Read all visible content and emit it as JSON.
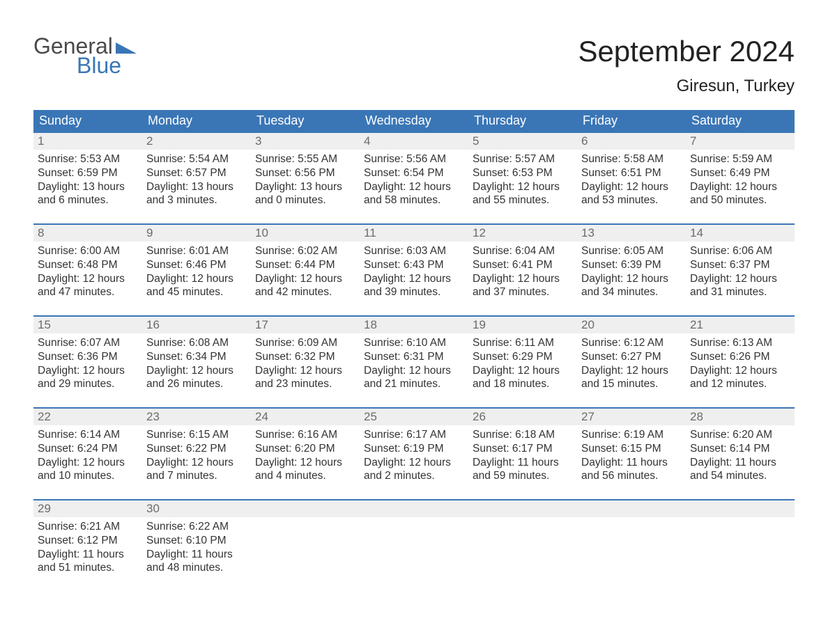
{
  "brand": {
    "line1": "General",
    "line2": "Blue"
  },
  "title": "September 2024",
  "location": "Giresun, Turkey",
  "colors": {
    "header_bg": "#3a76b6",
    "header_text": "#ffffff",
    "daynum_bg": "#efefef",
    "daynum_text": "#6b6b6b",
    "border_top": "#3a76b6",
    "body_text": "#333333",
    "logo_gray": "#4a4a4a",
    "logo_blue": "#3a76b6",
    "page_bg": "#ffffff"
  },
  "weekdays": [
    "Sunday",
    "Monday",
    "Tuesday",
    "Wednesday",
    "Thursday",
    "Friday",
    "Saturday"
  ],
  "weeks": [
    [
      {
        "n": "1",
        "sunrise": "Sunrise: 5:53 AM",
        "sunset": "Sunset: 6:59 PM",
        "d1": "Daylight: 13 hours",
        "d2": "and 6 minutes."
      },
      {
        "n": "2",
        "sunrise": "Sunrise: 5:54 AM",
        "sunset": "Sunset: 6:57 PM",
        "d1": "Daylight: 13 hours",
        "d2": "and 3 minutes."
      },
      {
        "n": "3",
        "sunrise": "Sunrise: 5:55 AM",
        "sunset": "Sunset: 6:56 PM",
        "d1": "Daylight: 13 hours",
        "d2": "and 0 minutes."
      },
      {
        "n": "4",
        "sunrise": "Sunrise: 5:56 AM",
        "sunset": "Sunset: 6:54 PM",
        "d1": "Daylight: 12 hours",
        "d2": "and 58 minutes."
      },
      {
        "n": "5",
        "sunrise": "Sunrise: 5:57 AM",
        "sunset": "Sunset: 6:53 PM",
        "d1": "Daylight: 12 hours",
        "d2": "and 55 minutes."
      },
      {
        "n": "6",
        "sunrise": "Sunrise: 5:58 AM",
        "sunset": "Sunset: 6:51 PM",
        "d1": "Daylight: 12 hours",
        "d2": "and 53 minutes."
      },
      {
        "n": "7",
        "sunrise": "Sunrise: 5:59 AM",
        "sunset": "Sunset: 6:49 PM",
        "d1": "Daylight: 12 hours",
        "d2": "and 50 minutes."
      }
    ],
    [
      {
        "n": "8",
        "sunrise": "Sunrise: 6:00 AM",
        "sunset": "Sunset: 6:48 PM",
        "d1": "Daylight: 12 hours",
        "d2": "and 47 minutes."
      },
      {
        "n": "9",
        "sunrise": "Sunrise: 6:01 AM",
        "sunset": "Sunset: 6:46 PM",
        "d1": "Daylight: 12 hours",
        "d2": "and 45 minutes."
      },
      {
        "n": "10",
        "sunrise": "Sunrise: 6:02 AM",
        "sunset": "Sunset: 6:44 PM",
        "d1": "Daylight: 12 hours",
        "d2": "and 42 minutes."
      },
      {
        "n": "11",
        "sunrise": "Sunrise: 6:03 AM",
        "sunset": "Sunset: 6:43 PM",
        "d1": "Daylight: 12 hours",
        "d2": "and 39 minutes."
      },
      {
        "n": "12",
        "sunrise": "Sunrise: 6:04 AM",
        "sunset": "Sunset: 6:41 PM",
        "d1": "Daylight: 12 hours",
        "d2": "and 37 minutes."
      },
      {
        "n": "13",
        "sunrise": "Sunrise: 6:05 AM",
        "sunset": "Sunset: 6:39 PM",
        "d1": "Daylight: 12 hours",
        "d2": "and 34 minutes."
      },
      {
        "n": "14",
        "sunrise": "Sunrise: 6:06 AM",
        "sunset": "Sunset: 6:37 PM",
        "d1": "Daylight: 12 hours",
        "d2": "and 31 minutes."
      }
    ],
    [
      {
        "n": "15",
        "sunrise": "Sunrise: 6:07 AM",
        "sunset": "Sunset: 6:36 PM",
        "d1": "Daylight: 12 hours",
        "d2": "and 29 minutes."
      },
      {
        "n": "16",
        "sunrise": "Sunrise: 6:08 AM",
        "sunset": "Sunset: 6:34 PM",
        "d1": "Daylight: 12 hours",
        "d2": "and 26 minutes."
      },
      {
        "n": "17",
        "sunrise": "Sunrise: 6:09 AM",
        "sunset": "Sunset: 6:32 PM",
        "d1": "Daylight: 12 hours",
        "d2": "and 23 minutes."
      },
      {
        "n": "18",
        "sunrise": "Sunrise: 6:10 AM",
        "sunset": "Sunset: 6:31 PM",
        "d1": "Daylight: 12 hours",
        "d2": "and 21 minutes."
      },
      {
        "n": "19",
        "sunrise": "Sunrise: 6:11 AM",
        "sunset": "Sunset: 6:29 PM",
        "d1": "Daylight: 12 hours",
        "d2": "and 18 minutes."
      },
      {
        "n": "20",
        "sunrise": "Sunrise: 6:12 AM",
        "sunset": "Sunset: 6:27 PM",
        "d1": "Daylight: 12 hours",
        "d2": "and 15 minutes."
      },
      {
        "n": "21",
        "sunrise": "Sunrise: 6:13 AM",
        "sunset": "Sunset: 6:26 PM",
        "d1": "Daylight: 12 hours",
        "d2": "and 12 minutes."
      }
    ],
    [
      {
        "n": "22",
        "sunrise": "Sunrise: 6:14 AM",
        "sunset": "Sunset: 6:24 PM",
        "d1": "Daylight: 12 hours",
        "d2": "and 10 minutes."
      },
      {
        "n": "23",
        "sunrise": "Sunrise: 6:15 AM",
        "sunset": "Sunset: 6:22 PM",
        "d1": "Daylight: 12 hours",
        "d2": "and 7 minutes."
      },
      {
        "n": "24",
        "sunrise": "Sunrise: 6:16 AM",
        "sunset": "Sunset: 6:20 PM",
        "d1": "Daylight: 12 hours",
        "d2": "and 4 minutes."
      },
      {
        "n": "25",
        "sunrise": "Sunrise: 6:17 AM",
        "sunset": "Sunset: 6:19 PM",
        "d1": "Daylight: 12 hours",
        "d2": "and 2 minutes."
      },
      {
        "n": "26",
        "sunrise": "Sunrise: 6:18 AM",
        "sunset": "Sunset: 6:17 PM",
        "d1": "Daylight: 11 hours",
        "d2": "and 59 minutes."
      },
      {
        "n": "27",
        "sunrise": "Sunrise: 6:19 AM",
        "sunset": "Sunset: 6:15 PM",
        "d1": "Daylight: 11 hours",
        "d2": "and 56 minutes."
      },
      {
        "n": "28",
        "sunrise": "Sunrise: 6:20 AM",
        "sunset": "Sunset: 6:14 PM",
        "d1": "Daylight: 11 hours",
        "d2": "and 54 minutes."
      }
    ],
    [
      {
        "n": "29",
        "sunrise": "Sunrise: 6:21 AM",
        "sunset": "Sunset: 6:12 PM",
        "d1": "Daylight: 11 hours",
        "d2": "and 51 minutes."
      },
      {
        "n": "30",
        "sunrise": "Sunrise: 6:22 AM",
        "sunset": "Sunset: 6:10 PM",
        "d1": "Daylight: 11 hours",
        "d2": "and 48 minutes."
      },
      {
        "empty": true
      },
      {
        "empty": true
      },
      {
        "empty": true
      },
      {
        "empty": true
      },
      {
        "empty": true
      }
    ]
  ]
}
